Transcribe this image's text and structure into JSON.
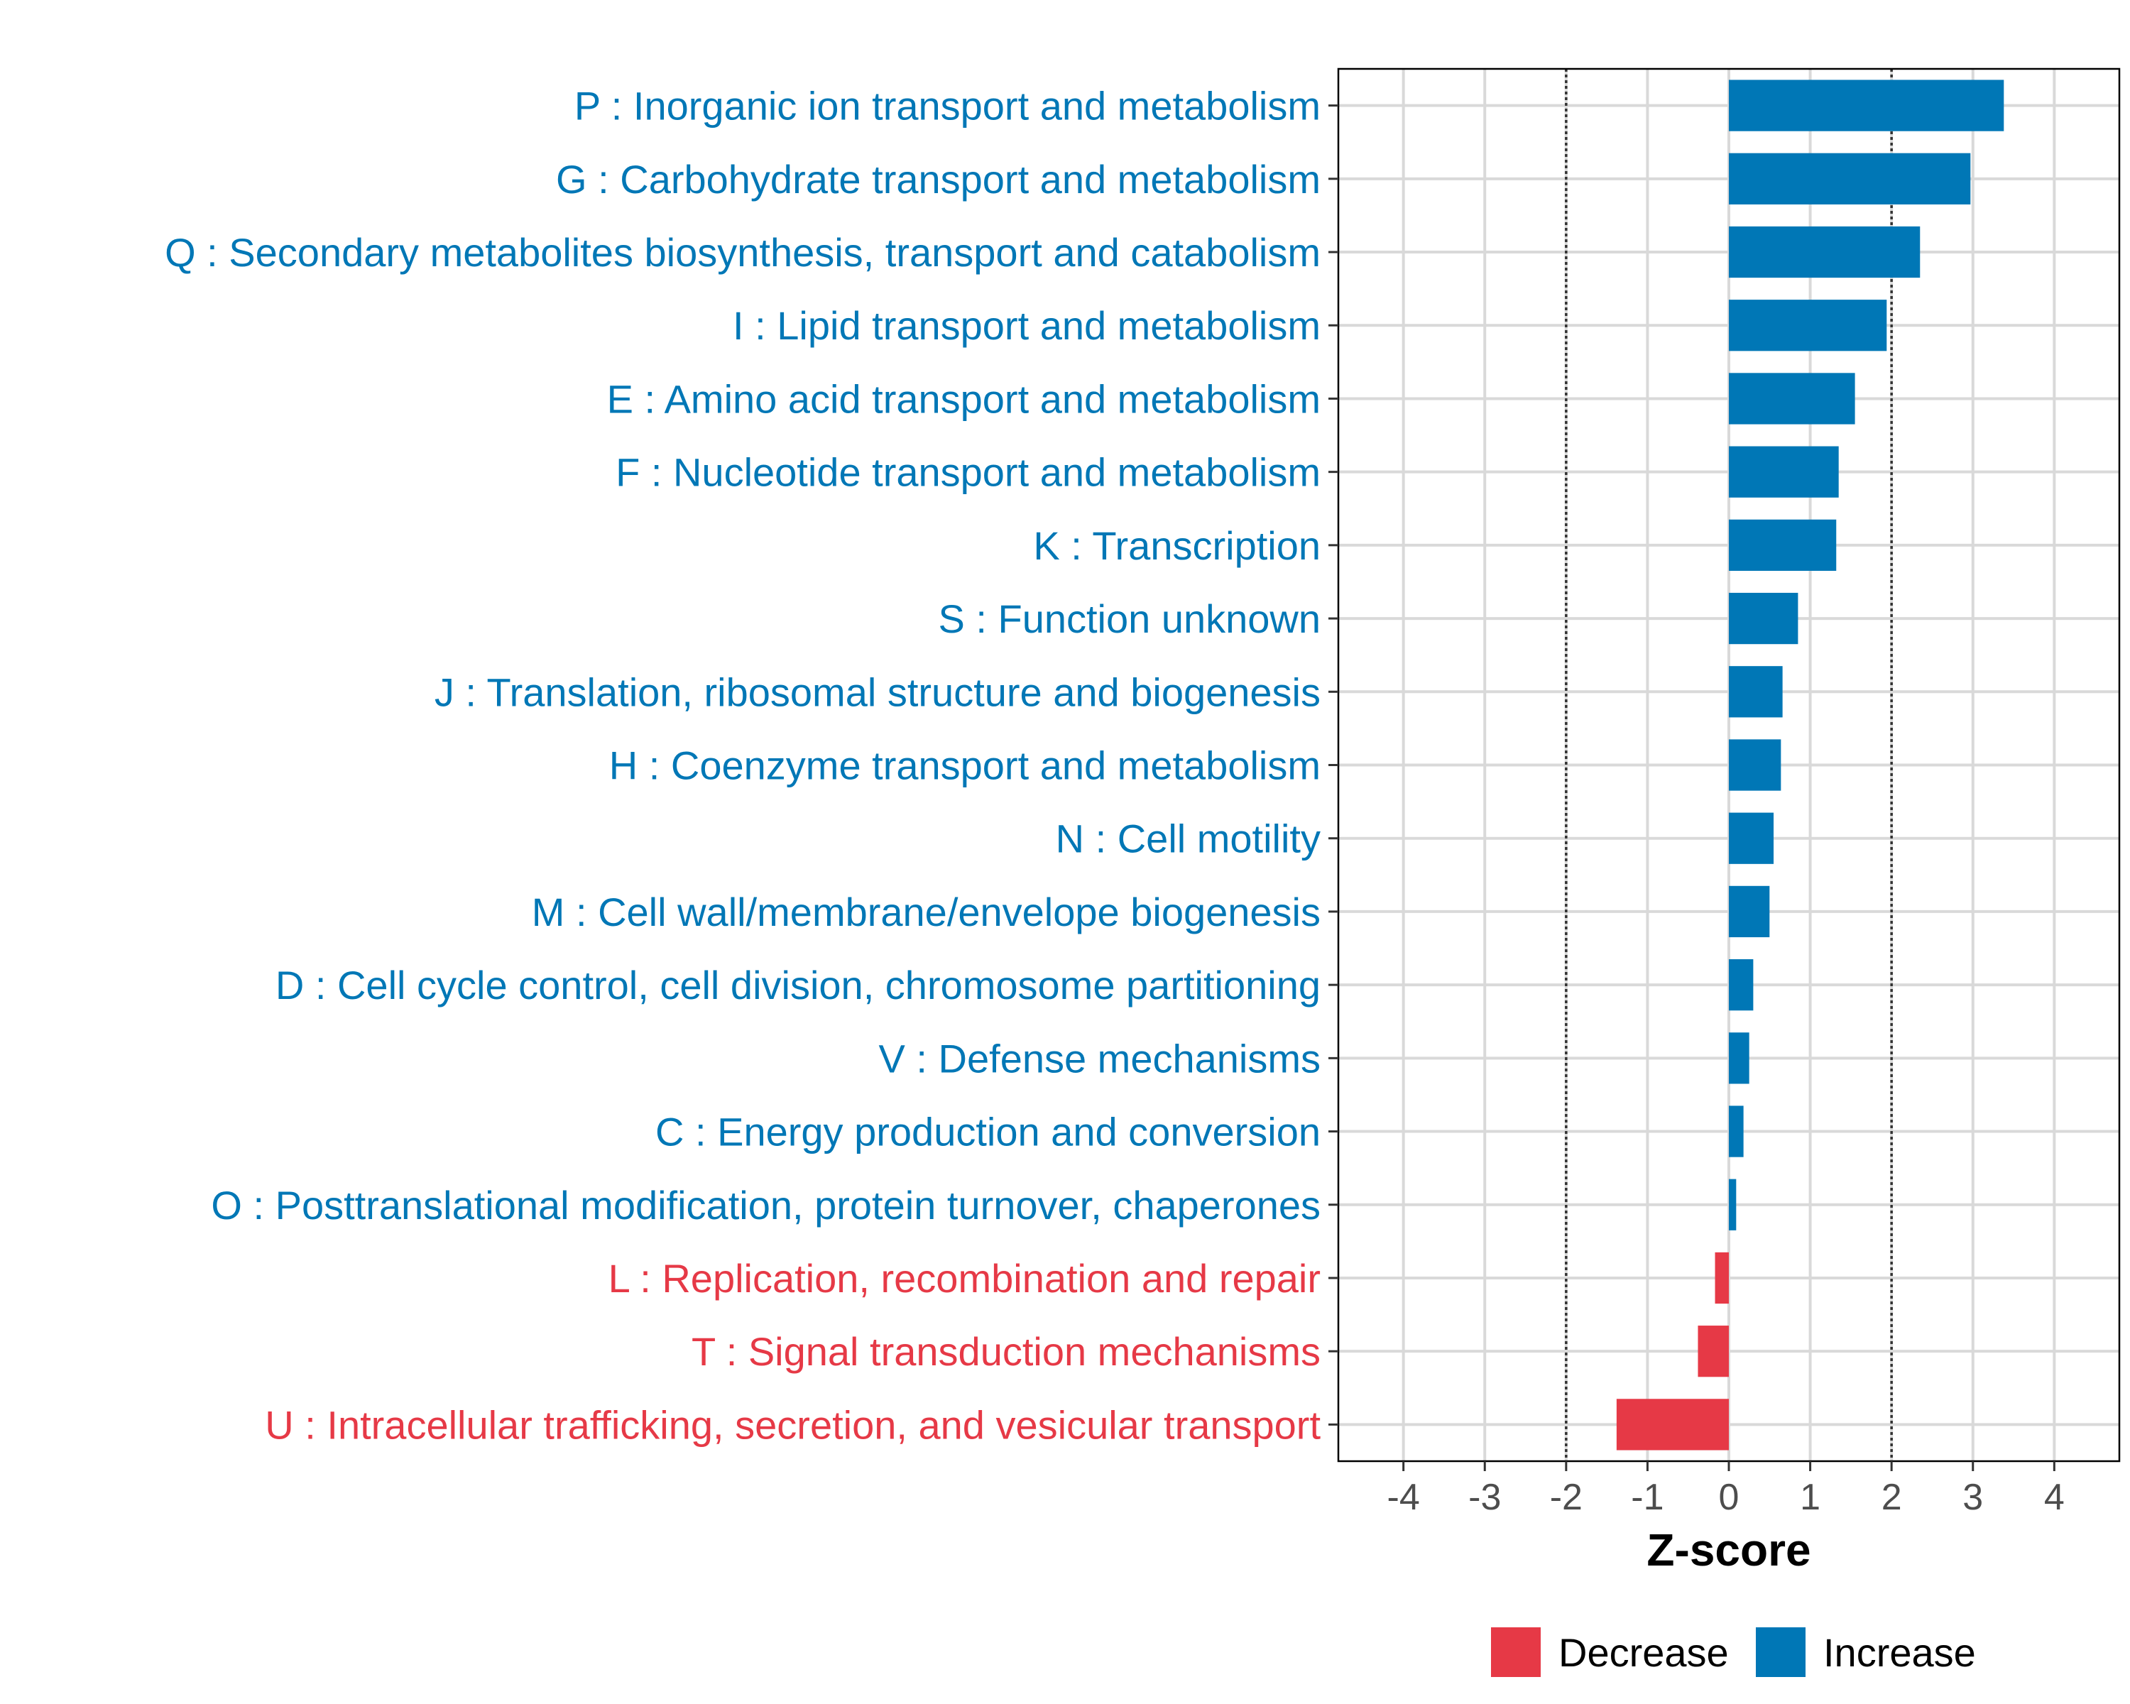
{
  "chart_data": {
    "type": "bar",
    "orientation": "horizontal",
    "xlabel": "Z-score",
    "ylabel": "",
    "xlim": [
      -4.8,
      4.8
    ],
    "xticks": [
      -4,
      -3,
      -2,
      -1,
      0,
      1,
      2,
      3,
      4
    ],
    "reference_lines": [
      -2,
      2
    ],
    "grid": true,
    "legend_position": "bottom",
    "legend": [
      {
        "label": "Decrease",
        "color": "#E63946"
      },
      {
        "label": "Increase",
        "color": "#0077B6"
      }
    ],
    "categories": [
      "P : Inorganic ion transport and metabolism",
      "G : Carbohydrate transport and metabolism",
      "Q : Secondary metabolites biosynthesis, transport and catabolism",
      "I : Lipid transport and metabolism",
      "E : Amino acid transport and metabolism",
      "F : Nucleotide transport and metabolism",
      "K : Transcription",
      "S : Function unknown",
      "J : Translation, ribosomal structure and biogenesis",
      "H : Coenzyme transport and metabolism",
      "N : Cell motility",
      "M : Cell wall/membrane/envelope biogenesis",
      "D : Cell cycle control, cell division, chromosome partitioning",
      "V : Defense mechanisms",
      "C : Energy production and conversion",
      "O : Posttranslational modification, protein turnover, chaperones",
      "L : Replication, recombination and repair",
      "T : Signal transduction mechanisms",
      "U : Intracellular trafficking, secretion, and vesicular transport"
    ],
    "values": [
      3.38,
      2.97,
      2.35,
      1.94,
      1.55,
      1.35,
      1.32,
      0.85,
      0.66,
      0.64,
      0.55,
      0.5,
      0.3,
      0.25,
      0.18,
      0.09,
      -0.17,
      -0.38,
      -1.38
    ],
    "groups": [
      "Increase",
      "Increase",
      "Increase",
      "Increase",
      "Increase",
      "Increase",
      "Increase",
      "Increase",
      "Increase",
      "Increase",
      "Increase",
      "Increase",
      "Increase",
      "Increase",
      "Increase",
      "Increase",
      "Decrease",
      "Decrease",
      "Decrease"
    ]
  }
}
